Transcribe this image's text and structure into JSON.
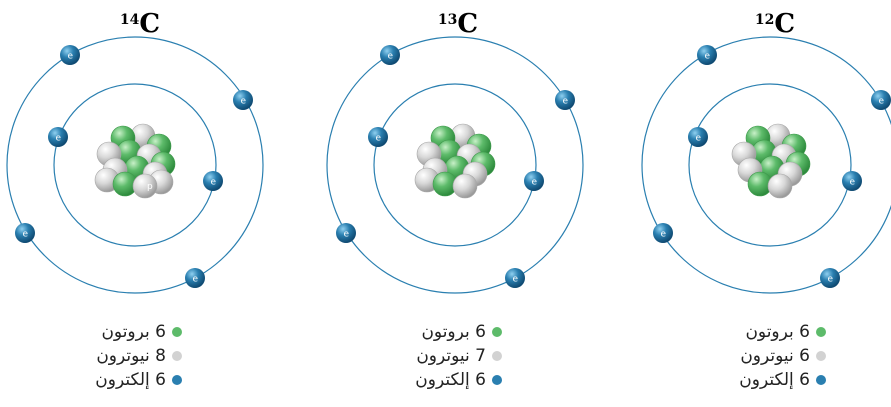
{
  "colors": {
    "proton": "#5dbb6a",
    "neutron": "#cfcfcf",
    "electron": "#2a7fb0",
    "orbit": "#2a7fb0"
  },
  "electron_label": "e",
  "atoms": [
    {
      "isotope_mass": "14",
      "isotope_symbol": "C",
      "proton_label": "p",
      "legend": {
        "protons": "6 بروتون",
        "neutrons": "8 نيوترون",
        "electrons": "6 إلكترون"
      }
    },
    {
      "isotope_mass": "13",
      "isotope_symbol": "C",
      "legend": {
        "protons": "6 بروتون",
        "neutrons": "7 نيوترون",
        "electrons": "6 إلكترون"
      }
    },
    {
      "isotope_mass": "12",
      "isotope_symbol": "C",
      "legend": {
        "protons": "6 بروتون",
        "neutrons": "6 نيوترون",
        "electrons": "6 إلكترون"
      }
    }
  ]
}
